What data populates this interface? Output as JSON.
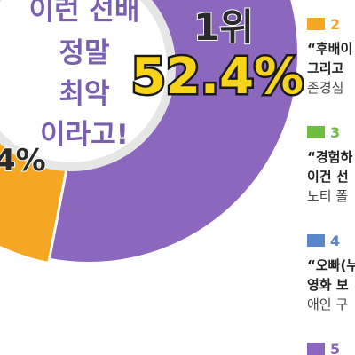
{
  "center": {
    "lines": [
      "이런 선배",
      "정말",
      "최악",
      "이라고!"
    ]
  },
  "top": {
    "rank": "1위",
    "value": "52.4%"
  },
  "left_value": "4%",
  "legend": [
    {
      "rank": "2",
      "lines": [
        "“후배이",
        "그리고",
        "존경심"
      ]
    },
    {
      "rank": "3",
      "lines": [
        "“경험하",
        "이건 선",
        "노티 폴"
      ]
    },
    {
      "rank": "4",
      "lines": [
        "“오빠(누",
        "영화 보",
        "애인 구"
      ]
    },
    {
      "rank": "5",
      "lines": []
    }
  ]
}
